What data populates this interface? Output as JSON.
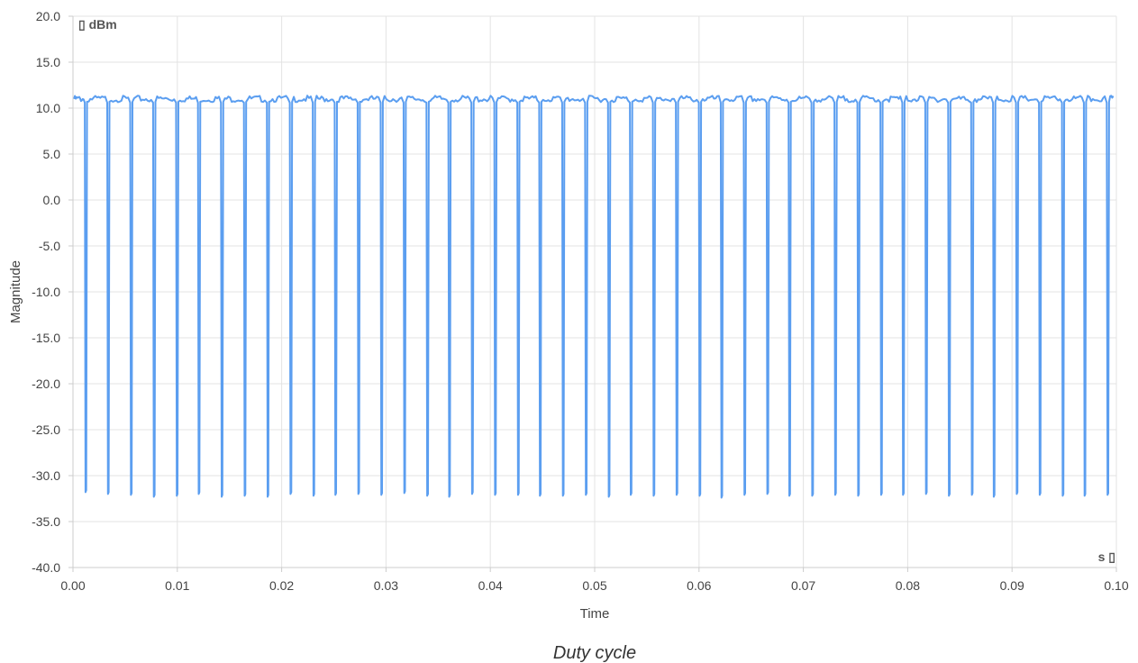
{
  "chart_data": {
    "type": "line",
    "caption": "Duty cycle",
    "xlabel": "Time",
    "ylabel": "Magnitude",
    "x_unit_label": "s ▯",
    "y_unit_label": "▯ dBm",
    "xlim": [
      0,
      0.1
    ],
    "ylim": [
      -40,
      20
    ],
    "x_ticks": [
      "0.00",
      "0.01",
      "0.02",
      "0.03",
      "0.04",
      "0.05",
      "0.06",
      "0.07",
      "0.08",
      "0.09",
      "0.10"
    ],
    "y_ticks": [
      "20.0",
      "15.0",
      "10.0",
      "5.0",
      "0.0",
      "-5.0",
      "-10.0",
      "-15.0",
      "-20.0",
      "-25.0",
      "-30.0",
      "-35.0",
      "-40.0"
    ],
    "grid": true,
    "series": [
      {
        "color": "#5b9ef0",
        "high_level": 11.0,
        "low_level": -32.0,
        "first_x": 0.0001,
        "last_x": 0.0997,
        "pulse_times": [
          0.00125,
          0.0034,
          0.0056,
          0.0078,
          0.01,
          0.0121,
          0.0143,
          0.0165,
          0.0187,
          0.0209,
          0.0231,
          0.0252,
          0.0274,
          0.0296,
          0.0318,
          0.034,
          0.0361,
          0.0383,
          0.0405,
          0.0427,
          0.0448,
          0.047,
          0.0492,
          0.0514,
          0.0535,
          0.0557,
          0.0579,
          0.0601,
          0.0622,
          0.0644,
          0.0666,
          0.0687,
          0.0709,
          0.0731,
          0.0753,
          0.0775,
          0.0796,
          0.0818,
          0.084,
          0.0862,
          0.0883,
          0.0905,
          0.0927,
          0.0949,
          0.097,
          0.0992
        ],
        "pulse_min": [
          -31.8,
          -32.0,
          -32.1,
          -32.3,
          -32.2,
          -32.0,
          -32.3,
          -32.2,
          -32.3,
          -32.0,
          -32.2,
          -32.1,
          -32.0,
          -32.1,
          -31.9,
          -32.2,
          -32.3,
          -32.0,
          -32.1,
          -32.1,
          -32.2,
          -32.2,
          -32.1,
          -32.3,
          -32.1,
          -32.2,
          -32.1,
          -32.2,
          -32.4,
          -32.1,
          -32.0,
          -32.2,
          -32.2,
          -32.1,
          -32.2,
          -32.1,
          -32.1,
          -32.0,
          -32.2,
          -32.1,
          -32.3,
          -32.0,
          -32.1,
          -32.2,
          -32.2,
          -32.1
        ]
      }
    ]
  }
}
